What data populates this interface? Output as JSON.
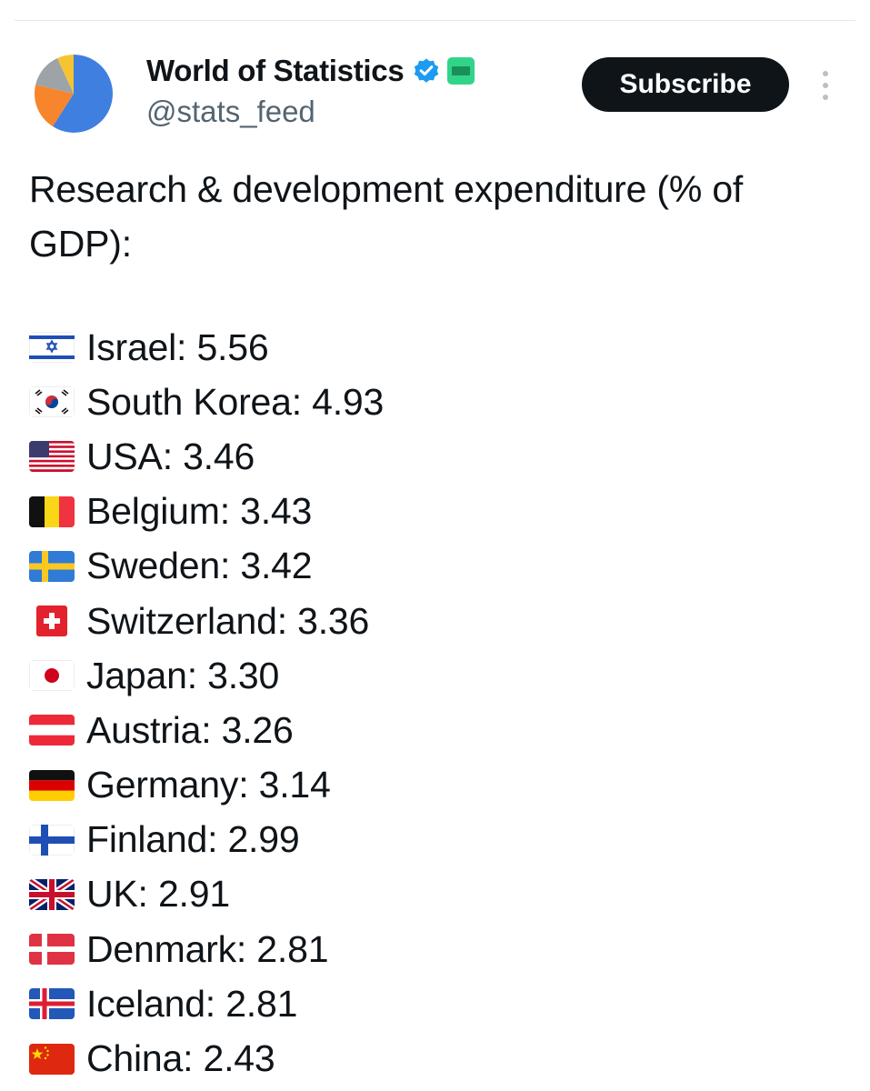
{
  "account": {
    "display_name": "World of Statistics",
    "handle": "@stats_feed",
    "verified_icon": "verified-badge-icon",
    "affiliate_icon": "affiliate-badge-icon",
    "avatar_icon": "pie-chart-avatar"
  },
  "actions": {
    "subscribe_label": "Subscribe",
    "more_icon": "more-vertical-icon"
  },
  "post": {
    "heading": "Research & development expenditure (% of GDP):",
    "items": [
      {
        "flag": "israel-flag-icon",
        "text": "Israel: 5.56"
      },
      {
        "flag": "south-korea-flag-icon",
        "text": "South Korea: 4.93"
      },
      {
        "flag": "usa-flag-icon",
        "text": "USA: 3.46"
      },
      {
        "flag": "belgium-flag-icon",
        "text": "Belgium: 3.43"
      },
      {
        "flag": "sweden-flag-icon",
        "text": "Sweden: 3.42"
      },
      {
        "flag": "switzerland-flag-icon",
        "text": "Switzerland: 3.36"
      },
      {
        "flag": "japan-flag-icon",
        "text": "Japan: 3.30"
      },
      {
        "flag": "austria-flag-icon",
        "text": "Austria: 3.26"
      },
      {
        "flag": "germany-flag-icon",
        "text": "Germany: 3.14"
      },
      {
        "flag": "finland-flag-icon",
        "text": "Finland: 2.99"
      },
      {
        "flag": "uk-flag-icon",
        "text": "UK: 2.91"
      },
      {
        "flag": "denmark-flag-icon",
        "text": "Denmark: 2.81"
      },
      {
        "flag": "iceland-flag-icon",
        "text": "Iceland: 2.81"
      },
      {
        "flag": "china-flag-icon",
        "text": "China: 2.43"
      }
    ]
  },
  "colors": {
    "text": "#0f1419",
    "secondary_text": "#536471",
    "button_bg": "#0f1419",
    "button_text": "#ffffff",
    "verified_blue": "#1d9bf0",
    "affiliate_green": "#32d48a"
  }
}
